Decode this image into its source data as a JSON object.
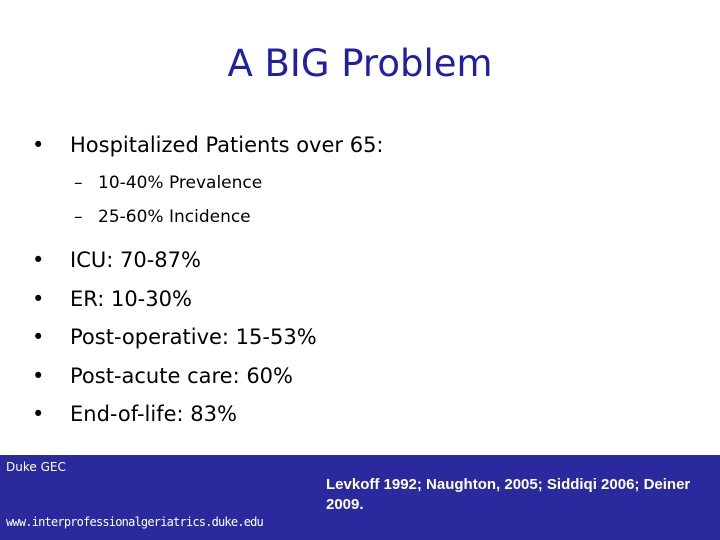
{
  "title": "A BIG Problem",
  "bullets": [
    {
      "text": "Hospitalized Patients over 65:",
      "sub": [
        "10-40% Prevalence",
        "25-60% Incidence"
      ]
    },
    {
      "text": "ICU:  70-87%"
    },
    {
      "text": "ER: 10-30%"
    },
    {
      "text": "Post-operative: 15-53%"
    },
    {
      "text": "Post-acute care: 60%"
    },
    {
      "text": "End-of-life: 83%"
    }
  ],
  "footer": {
    "org": "Duke GEC",
    "url": "www.interprofessionalgeriatrics.duke.edu",
    "citation": "Levkoff 1992; Naughton, 2005; Siddiqi 2006; Deiner 2009."
  }
}
